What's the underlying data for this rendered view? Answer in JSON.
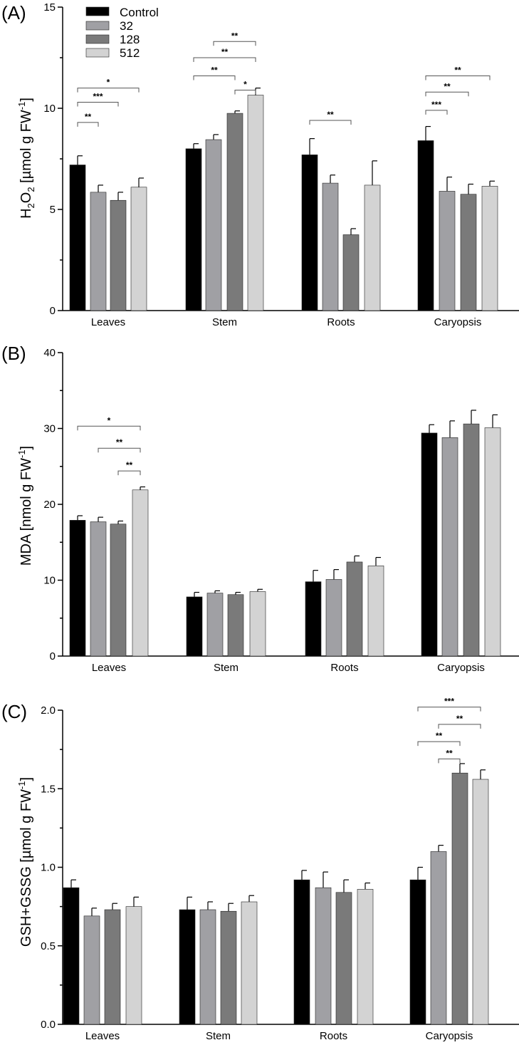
{
  "legend": {
    "entries": [
      {
        "label": "Control",
        "color": "#000000"
      },
      {
        "label": "32",
        "color": "#a0a0a4"
      },
      {
        "label": "128",
        "color": "#7a7a7a"
      },
      {
        "label": "512",
        "color": "#d3d3d3"
      }
    ]
  },
  "chart_data": [
    {
      "type": "bar",
      "panel": "(A)",
      "ylabel_main": "H",
      "ylabel_sub1": "2",
      "ylabel_mid": "O",
      "ylabel_sub2": "2",
      "ylabel_unit": " [µmol g FW",
      "ylabel_exp": "-1",
      "ylabel_end": "]",
      "ylim": [
        0,
        15
      ],
      "yticks": [
        0,
        5,
        10,
        15
      ],
      "yticks_labels": [
        "0",
        "5",
        "10",
        "15"
      ],
      "categories": [
        "Leaves",
        "Stem",
        "Roots",
        "Caryopsis"
      ],
      "series": [
        {
          "name": "Control",
          "values": [
            7.2,
            8.0,
            7.7,
            8.4
          ],
          "errors": [
            0.45,
            0.25,
            0.8,
            0.7
          ]
        },
        {
          "name": "32",
          "values": [
            5.85,
            8.45,
            6.3,
            5.9
          ],
          "errors": [
            0.35,
            0.25,
            0.4,
            0.7
          ]
        },
        {
          "name": "128",
          "values": [
            5.45,
            9.75,
            3.75,
            5.75
          ],
          "errors": [
            0.4,
            0.12,
            0.3,
            0.5
          ]
        },
        {
          "name": "512",
          "values": [
            6.1,
            10.65,
            6.2,
            6.15
          ],
          "errors": [
            0.45,
            0.35,
            1.2,
            0.25
          ]
        }
      ],
      "significance": [
        {
          "group": 0,
          "from": 0,
          "to": 1,
          "label": "**",
          "level": 9.3
        },
        {
          "group": 0,
          "from": 0,
          "to": 2,
          "label": "***",
          "level": 10.3
        },
        {
          "group": 0,
          "from": 0,
          "to": 3,
          "label": "*",
          "level": 11.0
        },
        {
          "group": 1,
          "from": 2,
          "to": 3,
          "label": "*",
          "level": 10.9
        },
        {
          "group": 1,
          "from": 0,
          "to": 2,
          "label": "**",
          "level": 11.6
        },
        {
          "group": 1,
          "from": 0,
          "to": 3,
          "label": "**",
          "level": 12.5
        },
        {
          "group": 1,
          "from": 1,
          "to": 3,
          "label": "**",
          "level": 13.3
        },
        {
          "group": 2,
          "from": 0,
          "to": 2,
          "label": "**",
          "level": 9.4
        },
        {
          "group": 3,
          "from": 0,
          "to": 1,
          "label": "***",
          "level": 9.9
        },
        {
          "group": 3,
          "from": 0,
          "to": 2,
          "label": "**",
          "level": 10.8
        },
        {
          "group": 3,
          "from": 0,
          "to": 3,
          "label": "**",
          "level": 11.6
        }
      ]
    },
    {
      "type": "bar",
      "panel": "(B)",
      "ylabel_main": "MDA  [nmol g FW",
      "ylabel_exp": "-1",
      "ylabel_end": "]",
      "ylim": [
        0,
        40
      ],
      "yticks": [
        0,
        10,
        20,
        30,
        40
      ],
      "yticks_labels": [
        "0",
        "10",
        "20",
        "30",
        "40"
      ],
      "categories": [
        "Leaves",
        "Stem",
        "Roots",
        "Caryopsis"
      ],
      "series": [
        {
          "name": "Control",
          "values": [
            17.9,
            7.8,
            9.8,
            29.4
          ],
          "errors": [
            0.6,
            0.6,
            1.5,
            1.1
          ]
        },
        {
          "name": "32",
          "values": [
            17.7,
            8.3,
            10.1,
            28.8
          ],
          "errors": [
            0.6,
            0.3,
            1.3,
            2.2
          ]
        },
        {
          "name": "128",
          "values": [
            17.4,
            8.1,
            12.4,
            30.6
          ],
          "errors": [
            0.4,
            0.3,
            0.8,
            1.8
          ]
        },
        {
          "name": "512",
          "values": [
            21.9,
            8.5,
            11.9,
            30.1
          ],
          "errors": [
            0.4,
            0.3,
            1.1,
            1.7
          ]
        }
      ],
      "significance": [
        {
          "group": 0,
          "from": 2,
          "to": 3,
          "label": "**",
          "level": 24.4
        },
        {
          "group": 0,
          "from": 1,
          "to": 3,
          "label": "**",
          "level": 27.4
        },
        {
          "group": 0,
          "from": 0,
          "to": 3,
          "label": "*",
          "level": 30.3
        }
      ]
    },
    {
      "type": "bar",
      "panel": "(C)",
      "ylabel_main": "GSH+GSSG  [µmol g FW",
      "ylabel_exp": "-1",
      "ylabel_end": "]",
      "ylim": [
        0,
        2.0
      ],
      "yticks": [
        0,
        0.5,
        1.0,
        1.5,
        2.0
      ],
      "yticks_labels": [
        "0.0",
        "0.5",
        "1.0",
        "1.5",
        "2.0"
      ],
      "categories": [
        "Leaves",
        "Stem",
        "Roots",
        "Caryopsis"
      ],
      "series": [
        {
          "name": "Control",
          "values": [
            0.87,
            0.73,
            0.92,
            0.92
          ],
          "errors": [
            0.05,
            0.08,
            0.06,
            0.08
          ]
        },
        {
          "name": "32",
          "values": [
            0.69,
            0.73,
            0.87,
            1.1
          ],
          "errors": [
            0.05,
            0.05,
            0.1,
            0.04
          ]
        },
        {
          "name": "128",
          "values": [
            0.73,
            0.72,
            0.84,
            1.6
          ],
          "errors": [
            0.04,
            0.05,
            0.08,
            0.06
          ]
        },
        {
          "name": "512",
          "values": [
            0.75,
            0.78,
            0.86,
            1.56
          ],
          "errors": [
            0.06,
            0.04,
            0.04,
            0.06
          ]
        }
      ],
      "significance": [
        {
          "group": 3,
          "from": 1,
          "to": 2,
          "label": "**",
          "level": 1.69
        },
        {
          "group": 3,
          "from": 0,
          "to": 2,
          "label": "**",
          "level": 1.8
        },
        {
          "group": 3,
          "from": 1,
          "to": 3,
          "label": "**",
          "level": 1.91
        },
        {
          "group": 3,
          "from": 0,
          "to": 3,
          "label": "***",
          "level": 2.02
        }
      ]
    }
  ]
}
